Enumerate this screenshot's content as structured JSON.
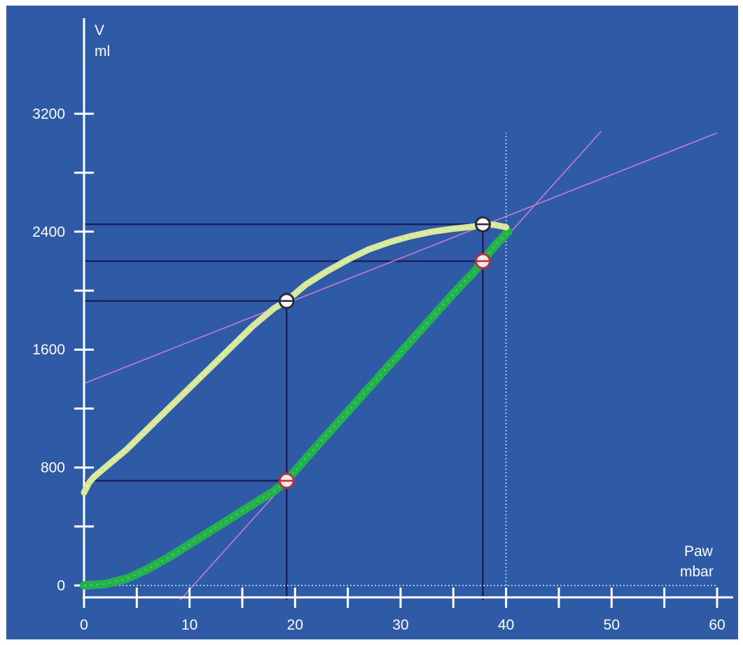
{
  "chart_data": {
    "type": "line",
    "title": "",
    "xlabel": "Paw",
    "xunit": "mbar",
    "ylabel": "V",
    "yunit": "ml",
    "xlim": [
      0,
      60
    ],
    "ylim": [
      0,
      3700
    ],
    "x_ticks": [
      0,
      10,
      20,
      30,
      40,
      50,
      60
    ],
    "x_minor_ticks": [
      5,
      15,
      25,
      35,
      45,
      55
    ],
    "y_ticks": [
      0,
      800,
      1600,
      2400,
      3200
    ],
    "y_minor_ticks": [
      400,
      1200,
      2000,
      2800
    ],
    "grid": false,
    "legend": "none",
    "series": [
      {
        "role": "inflation",
        "color": "#22b24c",
        "points": [
          [
            0,
            0
          ],
          [
            2,
            10
          ],
          [
            4,
            45
          ],
          [
            6,
            110
          ],
          [
            8,
            190
          ],
          [
            10,
            280
          ],
          [
            12,
            370
          ],
          [
            14,
            460
          ],
          [
            16,
            550
          ],
          [
            18,
            640
          ],
          [
            19.2,
            710
          ],
          [
            21,
            860
          ],
          [
            23,
            1020
          ],
          [
            25,
            1180
          ],
          [
            27,
            1340
          ],
          [
            29,
            1500
          ],
          [
            31,
            1660
          ],
          [
            33,
            1820
          ],
          [
            35,
            1980
          ],
          [
            37,
            2130
          ],
          [
            37.8,
            2200
          ],
          [
            39,
            2310
          ],
          [
            40.2,
            2400
          ]
        ]
      },
      {
        "role": "deflation",
        "color": "#d6e89a",
        "points": [
          [
            0,
            630
          ],
          [
            0.5,
            700
          ],
          [
            1,
            740
          ],
          [
            2,
            800
          ],
          [
            4,
            920
          ],
          [
            6,
            1060
          ],
          [
            8,
            1200
          ],
          [
            10,
            1340
          ],
          [
            12,
            1480
          ],
          [
            14,
            1620
          ],
          [
            16,
            1760
          ],
          [
            18,
            1880
          ],
          [
            19.2,
            1930
          ],
          [
            21,
            2040
          ],
          [
            23,
            2130
          ],
          [
            25,
            2210
          ],
          [
            27,
            2280
          ],
          [
            29,
            2330
          ],
          [
            31,
            2370
          ],
          [
            33,
            2400
          ],
          [
            35,
            2420
          ],
          [
            37,
            2435
          ],
          [
            38,
            2450
          ],
          [
            39,
            2445
          ],
          [
            40,
            2430
          ]
        ]
      }
    ],
    "reference_lines": [
      {
        "kind": "tangent",
        "color": "#c77bd0",
        "points": [
          [
            0,
            1370
          ],
          [
            60,
            3070
          ]
        ]
      },
      {
        "kind": "tangent",
        "color": "#c77bd0",
        "points": [
          [
            9.1,
            -100
          ],
          [
            49,
            3080
          ]
        ]
      },
      {
        "kind": "vertical-dotted",
        "color": "#8fd0f0",
        "x": 40,
        "y_range": [
          0,
          3070
        ]
      },
      {
        "kind": "horizontal-dotted",
        "color": "#8fd0f0",
        "y": 0,
        "x_range": [
          0,
          60
        ]
      }
    ],
    "guide_lines": [
      {
        "from": [
          0,
          710
        ],
        "to": [
          19.2,
          710
        ]
      },
      {
        "from": [
          0,
          1930
        ],
        "to": [
          19.2,
          1930
        ]
      },
      {
        "from": [
          0,
          2200
        ],
        "to": [
          37.8,
          2200
        ]
      },
      {
        "from": [
          0,
          2450
        ],
        "to": [
          37.8,
          2450
        ]
      },
      {
        "from": [
          19.2,
          -100
        ],
        "to": [
          19.2,
          1930
        ]
      },
      {
        "from": [
          37.8,
          -100
        ],
        "to": [
          37.8,
          2450
        ]
      }
    ],
    "markers": [
      {
        "x": 19.2,
        "y": 710,
        "style": "red"
      },
      {
        "x": 37.8,
        "y": 2200,
        "style": "red"
      },
      {
        "x": 19.2,
        "y": 1930,
        "style": "white"
      },
      {
        "x": 37.8,
        "y": 2450,
        "style": "white"
      }
    ]
  }
}
